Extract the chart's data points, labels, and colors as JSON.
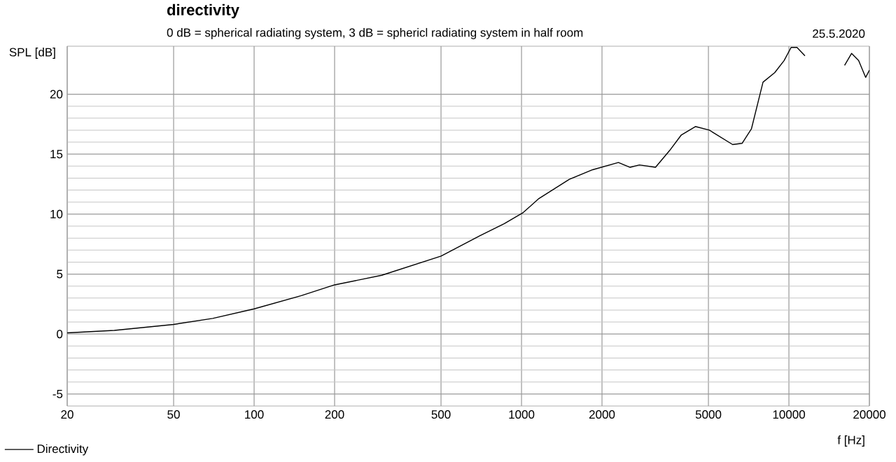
{
  "chart_data": {
    "type": "line",
    "title": "directivity",
    "subtitle": "0 dB = spherical radiating system, 3 dB = sphericl radiating system in half room",
    "annotations": [
      "25.5.2020"
    ],
    "xlabel": "f [Hz]",
    "ylabel": "SPL [dB]",
    "log": "x",
    "grid": true,
    "legend": "bottom left",
    "marker": "none",
    "line_style": "solid",
    "xlim": [
      20,
      20000
    ],
    "ylim": [
      -6,
      24
    ],
    "xticks": [
      20,
      50,
      100,
      200,
      500,
      1000,
      2000,
      5000,
      10000,
      20000
    ],
    "yticks": [
      -5,
      0,
      5,
      10,
      15,
      20
    ],
    "series": [
      {
        "name": "Directivity",
        "color": "#000000",
        "x": [
          20,
          30,
          50,
          70,
          100,
          150,
          200,
          300,
          500,
          700,
          861,
          1010,
          1162,
          1510,
          1845,
          2303,
          2547,
          2760,
          3170,
          3580,
          3960,
          4470,
          5040,
          6160,
          6680,
          7240,
          8000,
          8850,
          9590,
          10190,
          10720,
          11480,
          12450,
          15200,
          16150,
          17150,
          18230,
          19360,
          20000
        ],
        "values": [
          0.1,
          0.3,
          0.8,
          1.3,
          2.1,
          3.2,
          4.1,
          4.9,
          6.5,
          8.2,
          9.2,
          10.1,
          11.3,
          12.9,
          13.7,
          14.3,
          13.9,
          14.1,
          13.9,
          15.3,
          16.6,
          17.3,
          17.0,
          15.8,
          15.9,
          17.1,
          21.0,
          21.8,
          22.8,
          23.9,
          23.9,
          23.2,
          null,
          null,
          22.4,
          23.4,
          22.8,
          21.4,
          22.0
        ]
      }
    ]
  }
}
